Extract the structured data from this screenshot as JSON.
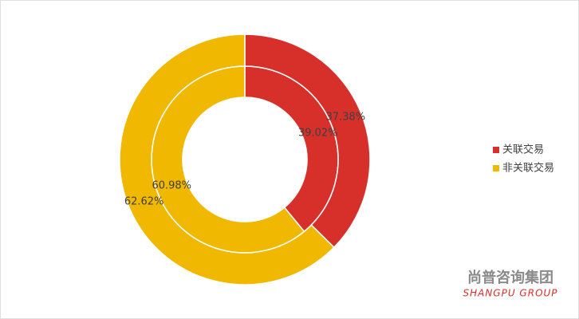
{
  "chart_data": {
    "type": "donut",
    "categories": [
      "关联交易",
      "非关联交易"
    ],
    "colors": [
      "#d7302b",
      "#f0b800"
    ],
    "rings": [
      {
        "values": [
          39.02,
          60.98
        ],
        "value_labels": [
          "39.02%",
          "60.98%"
        ]
      },
      {
        "values": [
          37.38,
          62.62
        ],
        "value_labels": [
          "37.38%",
          "62.62%"
        ]
      }
    ],
    "legend": "right",
    "watermark": {
      "title": "尚普咨询集团",
      "subtitle": "SHANGPU GROUP"
    }
  }
}
